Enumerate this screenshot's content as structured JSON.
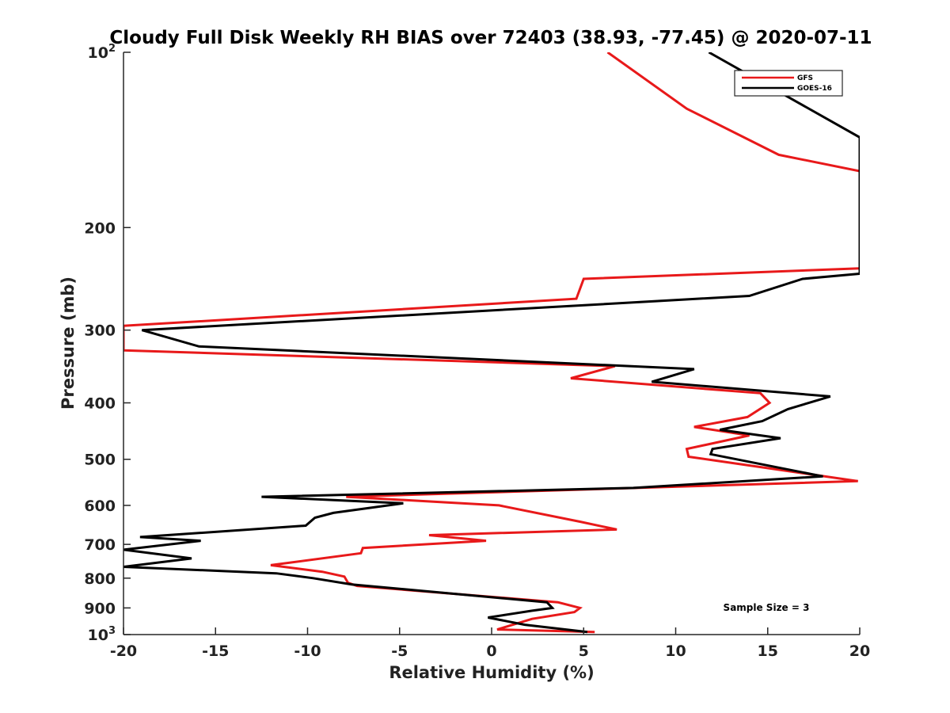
{
  "chart_data": {
    "type": "line",
    "title": "Cloudy Full Disk Weekly RH BIAS over 72403 (38.93, -77.45) @ 2020-07-11",
    "xlabel": "Relative Humidity (%)",
    "ylabel": "Pressure (mb)",
    "xlim": [
      -20,
      20
    ],
    "ylim": [
      100,
      1000
    ],
    "y_scale": "log",
    "y_reversed": true,
    "grid": false,
    "legend_position": "top-right",
    "annotation": "Sample Size = 3",
    "x_ticks": [
      -20,
      -15,
      -10,
      -5,
      0,
      5,
      10,
      15,
      20
    ],
    "x_tick_labels": [
      "-20",
      "-15",
      "-10",
      "-5",
      "0",
      "5",
      "10",
      "15",
      "20"
    ],
    "y_ticks": [
      {
        "value": 100,
        "base": "10",
        "exp": "2"
      },
      {
        "value": 200,
        "label": "200"
      },
      {
        "value": 300,
        "label": "300"
      },
      {
        "value": 400,
        "label": "400"
      },
      {
        "value": 500,
        "label": "500"
      },
      {
        "value": 600,
        "label": "600"
      },
      {
        "value": 700,
        "label": "700"
      },
      {
        "value": 800,
        "label": "800"
      },
      {
        "value": 900,
        "label": "900"
      },
      {
        "value": 1000,
        "base": "10",
        "exp": "3"
      }
    ],
    "series": [
      {
        "name": "GFS",
        "color": "#e8191a",
        "points": [
          [
            6.3,
            100
          ],
          [
            10.6,
            125
          ],
          [
            15.6,
            150
          ],
          [
            20,
            160
          ],
          [
            20,
            235
          ],
          [
            5.0,
            245
          ],
          [
            4.6,
            265
          ],
          [
            -20,
            295
          ],
          [
            -20,
            325
          ],
          [
            6.7,
            346
          ],
          [
            4.3,
            363
          ],
          [
            14.6,
            385
          ],
          [
            15.1,
            400
          ],
          [
            13.9,
            423
          ],
          [
            11.0,
            440
          ],
          [
            14.0,
            455
          ],
          [
            10.6,
            480
          ],
          [
            10.7,
            495
          ],
          [
            19.9,
            545
          ],
          [
            -7.9,
            580
          ],
          [
            0.4,
            600
          ],
          [
            4.8,
            640
          ],
          [
            6.8,
            660
          ],
          [
            -3.4,
            675
          ],
          [
            -0.3,
            690
          ],
          [
            -7.0,
            710
          ],
          [
            -7.1,
            725
          ],
          [
            -12.0,
            760
          ],
          [
            -9.2,
            780
          ],
          [
            -8.0,
            795
          ],
          [
            -7.8,
            815
          ],
          [
            -7.3,
            825
          ],
          [
            3.6,
            880
          ],
          [
            4.8,
            900
          ],
          [
            4.5,
            915
          ],
          [
            2.2,
            940
          ],
          [
            0.3,
            980
          ],
          [
            5.6,
            990
          ]
        ]
      },
      {
        "name": "GOES-16",
        "color": "#000000",
        "points": [
          [
            11.8,
            100
          ],
          [
            20,
            140
          ],
          [
            20,
            240
          ],
          [
            16.9,
            245
          ],
          [
            14.0,
            262
          ],
          [
            -19.0,
            300
          ],
          [
            -15.9,
            320
          ],
          [
            11.0,
            350
          ],
          [
            8.7,
            368
          ],
          [
            18.4,
            390
          ],
          [
            16.1,
            410
          ],
          [
            14.7,
            430
          ],
          [
            12.4,
            445
          ],
          [
            15.7,
            460
          ],
          [
            12.0,
            480
          ],
          [
            11.9,
            490
          ],
          [
            18.0,
            535
          ],
          [
            7.7,
            560
          ],
          [
            -12.5,
            580
          ],
          [
            -4.8,
            595
          ],
          [
            -8.6,
            618
          ],
          [
            -9.6,
            630
          ],
          [
            -10.1,
            650
          ],
          [
            -19.1,
            680
          ],
          [
            -15.8,
            690
          ],
          [
            -20,
            715
          ],
          [
            -16.3,
            740
          ],
          [
            -20,
            765
          ],
          [
            -11.7,
            785
          ],
          [
            -9.7,
            800
          ],
          [
            -7.6,
            820
          ],
          [
            3.0,
            880
          ],
          [
            3.3,
            900
          ],
          [
            2.2,
            910
          ],
          [
            -0.2,
            935
          ],
          [
            1.8,
            962
          ],
          [
            5.2,
            990
          ]
        ]
      }
    ]
  }
}
